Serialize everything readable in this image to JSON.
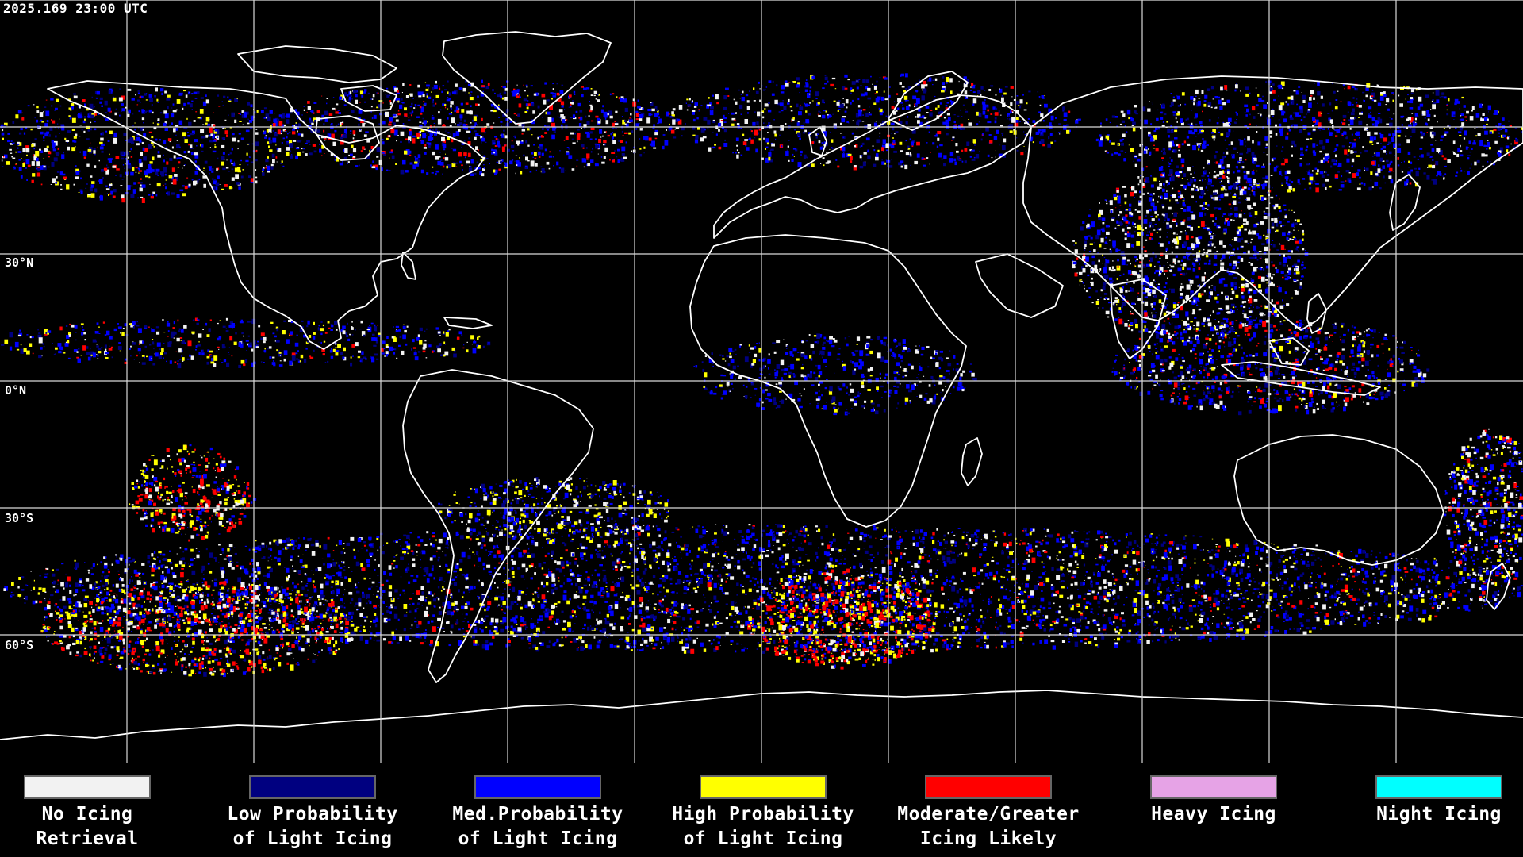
{
  "timestamp": "2025.169 23:00 UTC",
  "latitude_labels": [
    "30°N",
    "0°N",
    "30°S",
    "60°S"
  ],
  "legend": [
    {
      "label": "No Icing\nRetrieval",
      "color": "#f2f2f2"
    },
    {
      "label": "Low Probability\nof Light Icing",
      "color": "#000080"
    },
    {
      "label": "Med.Probability\nof Light Icing",
      "color": "#0000ff"
    },
    {
      "label": "High Probability\nof Light Icing",
      "color": "#ffff00"
    },
    {
      "label": "Moderate/Greater\nIcing Likely",
      "color": "#ff0000"
    },
    {
      "label": "Heavy Icing",
      "color": "#e6a3e6"
    },
    {
      "label": "Night Icing",
      "color": "#00ffff"
    }
  ],
  "colors": {
    "background": "#000000",
    "gridlines": "#d9d9d9",
    "coastlines": "#ffffff"
  }
}
